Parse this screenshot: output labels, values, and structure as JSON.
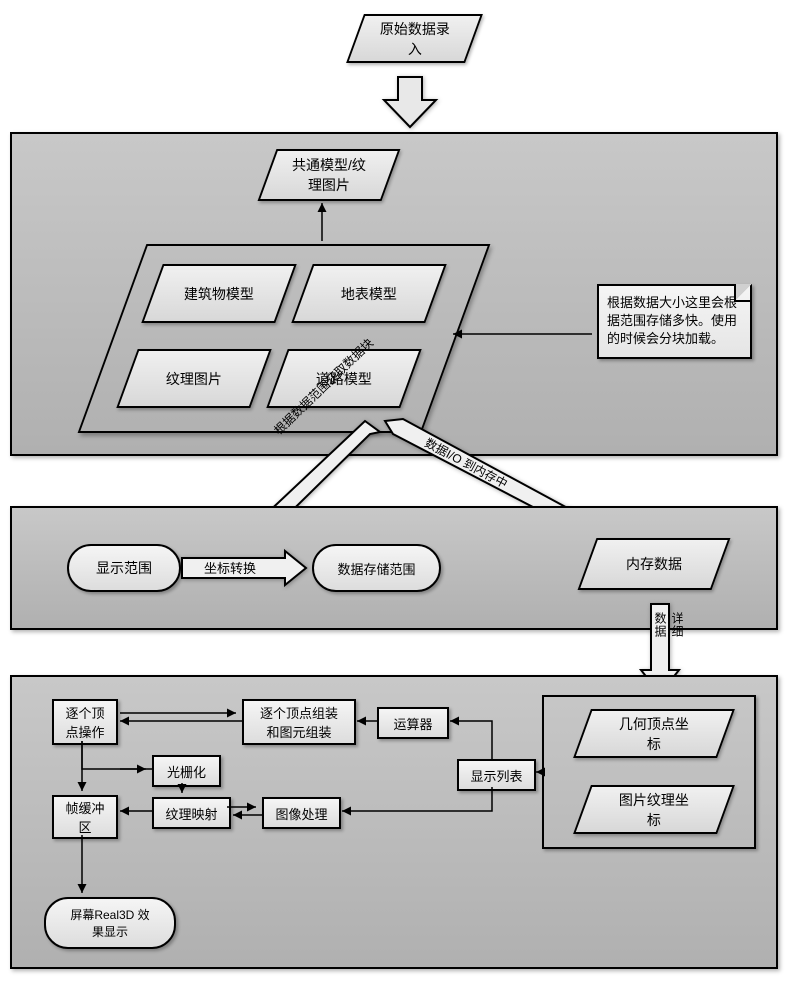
{
  "diagram": {
    "type": "flowchart",
    "background_color": "#ffffff",
    "panel_gradient_from": "#c8c8c8",
    "panel_gradient_to": "#b0b0b0",
    "shape_gradient_from": "#f0f0f0",
    "shape_gradient_to": "#d8d8d8",
    "border_color": "#000000",
    "font_family": "SimSun",
    "title_fontsize": 14,
    "label_fontsize": 13
  },
  "top": {
    "raw_data_input": "原始数据录\n入"
  },
  "panel1": {
    "common_model_texture": "共通模型/纹\n理图片",
    "building_model": "建筑物模型",
    "surface_model": "地表模型",
    "texture_image": "纹理图片",
    "road_model": "道路模型",
    "note_text": "根据数据大小这里会根据范围存储多快。使用的时候会分块加载。"
  },
  "mid_arrows": {
    "left_label": "根据数据范围获取数据块",
    "right_label": "数据I/O 到内存中"
  },
  "panel2": {
    "display_range": "显示范围",
    "coord_convert": "坐标转换",
    "data_storage_range": "数据存储范围",
    "memory_data": "内存数据"
  },
  "side_arrow": {
    "label": "详细数据"
  },
  "panel3": {
    "per_vertex_op": "逐个顶\n点操作",
    "frame_buffer": "帧缓冲\n区",
    "rasterize": "光栅化",
    "texture_map": "纹理映射",
    "image_process": "图像处理",
    "per_vertex_assembly": "逐个顶点组装\n和图元组装",
    "operator": "运算器",
    "display_list": "显示列表",
    "geom_vertex_coord": "几何顶点坐\n标",
    "image_texture_coord": "图片纹理坐\n标",
    "screen_display": "屏幕Real3D 效\n果显示"
  }
}
